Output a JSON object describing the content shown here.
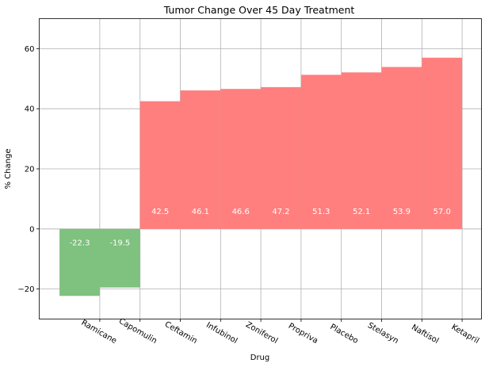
{
  "chart_data": {
    "type": "bar",
    "title": "Tumor Change Over 45 Day Treatment",
    "xlabel": "Drug",
    "ylabel": "% Change",
    "ylim": [
      -30,
      70
    ],
    "yticks": [
      -20,
      0,
      20,
      40,
      60
    ],
    "ytick_labels": [
      "−20",
      "0",
      "20",
      "40",
      "60"
    ],
    "grid": true,
    "categories": [
      "Ramicane",
      "Capomulin",
      "Ceftamin",
      "Infubinol",
      "Zoniferol",
      "Propriva",
      "Placebo",
      "Stelasyn",
      "Naftisol",
      "Ketapril"
    ],
    "values": [
      -22.3,
      -19.5,
      42.5,
      46.1,
      46.6,
      47.2,
      51.3,
      52.1,
      53.9,
      57.0
    ],
    "value_labels": [
      "-22.3",
      "-19.5",
      "42.5",
      "46.1",
      "46.6",
      "47.2",
      "51.3",
      "52.1",
      "53.9",
      "57.0"
    ],
    "colors": {
      "negative": "#7fc17f",
      "positive": "#ff7f7f",
      "grid": "#b0b0b0",
      "value_label": "#ffffff"
    }
  }
}
